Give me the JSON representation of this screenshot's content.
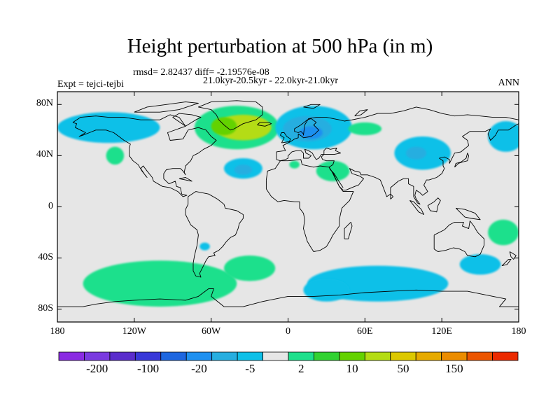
{
  "map": {
    "title": "Height perturbation at 500 hPa (in m)",
    "rmsd_line": "rmsd= 2.82437 diff= -2.19576e-08",
    "period_line": "21.0kyr-20.5kyr - 22.0kyr-21.0kyr",
    "experiment_label": "Expt = tejci-tejbi",
    "season_label": "ANN",
    "projection": "cylindrical-equidistant",
    "extent": {
      "lon": [
        -180,
        180
      ],
      "lat": [
        -90,
        90
      ]
    },
    "background_color": "#e6e6e6",
    "lat_ticks": [
      {
        "lat": 80,
        "label": "80N"
      },
      {
        "lat": 40,
        "label": "40N"
      },
      {
        "lat": 0,
        "label": "0"
      },
      {
        "lat": -40,
        "label": "40S"
      },
      {
        "lat": -80,
        "label": "80S"
      }
    ],
    "lon_ticks": [
      {
        "lon": -180,
        "label": "180"
      },
      {
        "lon": -120,
        "label": "120W"
      },
      {
        "lon": -60,
        "label": "60W"
      },
      {
        "lon": 0,
        "label": "0"
      },
      {
        "lon": 60,
        "label": "60E"
      },
      {
        "lon": 120,
        "label": "120E"
      },
      {
        "lon": 180,
        "label": "180"
      }
    ],
    "colorbar": {
      "colors": [
        "#8a2be2",
        "#7a3ae0",
        "#5a2dcc",
        "#3838d8",
        "#1d66e0",
        "#1e90f0",
        "#27aee0",
        "#0ec0e8",
        "#e6e6e6",
        "#1ee08c",
        "#32d232",
        "#64d200",
        "#b4dc14",
        "#dcc800",
        "#e6aa00",
        "#eb8c00",
        "#eb5500",
        "#eb2a00"
      ],
      "labels": [
        {
          "text": "-200",
          "index": 1
        },
        {
          "text": "-100",
          "index": 3
        },
        {
          "text": "-20",
          "index": 5
        },
        {
          "text": "-5",
          "index": 7
        },
        {
          "text": "2",
          "index": 9
        },
        {
          "text": "10",
          "index": 11
        },
        {
          "text": "50",
          "index": 13
        },
        {
          "text": "150",
          "index": 15
        }
      ]
    },
    "anomalies": [
      {
        "name": "north-atlantic-positive",
        "lon": -40,
        "lat": 62,
        "rlon": 33,
        "rlat": 17,
        "color": "#1ee08c"
      },
      {
        "name": "north-atlantic-positive-core",
        "lon": -35,
        "lat": 62,
        "rlon": 22,
        "rlat": 10,
        "color": "#b4dc14"
      },
      {
        "name": "north-atlantic-positive-core-west",
        "lon": -50,
        "lat": 63,
        "rlon": 10,
        "rlat": 7,
        "color": "#64d200"
      },
      {
        "name": "siberia-negative",
        "lon": 20,
        "lat": 62,
        "rlon": 30,
        "rlat": 17,
        "color": "#0ec0e8"
      },
      {
        "name": "siberia-negative-core",
        "lon": 15,
        "lat": 61,
        "rlon": 19,
        "rlat": 10,
        "color": "#27aee0"
      },
      {
        "name": "siberia-negative-inner",
        "lon": 18,
        "lat": 58,
        "rlon": 9,
        "rlat": 5,
        "color": "#1e90f0"
      },
      {
        "name": "ural-positive",
        "lon": 60,
        "lat": 61,
        "rlon": 13,
        "rlat": 5,
        "color": "#1ee08c"
      },
      {
        "name": "east-asia-negative",
        "lon": 105,
        "lat": 42,
        "rlon": 22,
        "rlat": 13,
        "color": "#0ec0e8"
      },
      {
        "name": "east-asia-negative-core",
        "lon": 100,
        "lat": 42,
        "rlon": 8,
        "rlat": 5,
        "color": "#27aee0"
      },
      {
        "name": "north-america-negative",
        "lon": -140,
        "lat": 62,
        "rlon": 40,
        "rlat": 12,
        "color": "#0ec0e8"
      },
      {
        "name": "far-east-negative",
        "lon": 170,
        "lat": 55,
        "rlon": 14,
        "rlat": 12,
        "color": "#0ec0e8"
      },
      {
        "name": "central-atlantic-negative",
        "lon": -35,
        "lat": 30,
        "rlon": 15,
        "rlat": 8,
        "color": "#0ec0e8"
      },
      {
        "name": "central-atlantic-negative-core",
        "lon": -35,
        "lat": 29,
        "rlon": 7,
        "rlat": 4,
        "color": "#27aee0"
      },
      {
        "name": "mediterranean-positive",
        "lon": 5,
        "lat": 33,
        "rlon": 4,
        "rlat": 3,
        "color": "#1ee08c"
      },
      {
        "name": "middle-east-positive",
        "lon": 35,
        "lat": 28,
        "rlon": 13,
        "rlat": 8,
        "color": "#1ee08c"
      },
      {
        "name": "pacific-positive",
        "lon": -135,
        "lat": 40,
        "rlon": 7,
        "rlat": 7,
        "color": "#1ee08c"
      },
      {
        "name": "australia-positive",
        "lon": 168,
        "lat": -20,
        "rlon": 12,
        "rlat": 10,
        "color": "#1ee08c"
      },
      {
        "name": "south-america-negative",
        "lon": -65,
        "lat": -31,
        "rlon": 4,
        "rlat": 3,
        "color": "#0ec0e8"
      },
      {
        "name": "southern-ocean-positive",
        "lon": -100,
        "lat": -60,
        "rlon": 60,
        "rlat": 18,
        "color": "#1ee08c"
      },
      {
        "name": "southern-ocean-positive-east",
        "lon": -30,
        "lat": -48,
        "rlon": 20,
        "rlat": 10,
        "color": "#1ee08c"
      },
      {
        "name": "southern-indian-negative",
        "lon": 70,
        "lat": -60,
        "rlon": 55,
        "rlat": 14,
        "color": "#0ec0e8"
      },
      {
        "name": "southern-indian-negative-east",
        "lon": 30,
        "lat": -65,
        "rlon": 18,
        "rlat": 9,
        "color": "#0ec0e8"
      },
      {
        "name": "south-pacific-negative",
        "lon": 150,
        "lat": -45,
        "rlon": 16,
        "rlat": 8,
        "color": "#0ec0e8"
      }
    ]
  }
}
